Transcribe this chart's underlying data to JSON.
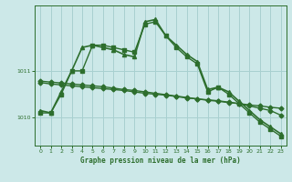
{
  "background_color": "#cce8e8",
  "grid_color": "#a8d0d0",
  "line_color": "#2d6e2d",
  "title": "Graphe pression niveau de la mer (hPa)",
  "xlim": [
    -0.5,
    23.5
  ],
  "ylim": [
    1009.4,
    1012.4
  ],
  "yticks": [
    1010,
    1011
  ],
  "xticks": [
    0,
    1,
    2,
    3,
    4,
    5,
    6,
    7,
    8,
    9,
    10,
    11,
    12,
    13,
    14,
    15,
    16,
    17,
    18,
    19,
    20,
    21,
    22,
    23
  ],
  "series": [
    {
      "x": [
        0,
        1,
        2,
        3,
        4,
        5,
        6,
        7,
        8,
        9,
        10,
        11,
        12,
        13,
        14,
        15,
        16,
        17,
        18,
        19,
        20,
        21,
        22,
        23
      ],
      "y": [
        1010.75,
        1010.72,
        1010.7,
        1010.68,
        1010.66,
        1010.64,
        1010.62,
        1010.6,
        1010.58,
        1010.55,
        1010.52,
        1010.5,
        1010.48,
        1010.45,
        1010.42,
        1010.4,
        1010.37,
        1010.35,
        1010.32,
        1010.3,
        1010.27,
        1010.25,
        1010.22,
        1010.2
      ],
      "marker": "D",
      "markersize": 2.5,
      "linewidth": 1.0
    },
    {
      "x": [
        0,
        1,
        2,
        3,
        4,
        5,
        6,
        7,
        8,
        9,
        10,
        11,
        12,
        13,
        14,
        15,
        16,
        17,
        18,
        19,
        20,
        21,
        22,
        23
      ],
      "y": [
        1010.78,
        1010.76,
        1010.74,
        1010.72,
        1010.7,
        1010.68,
        1010.66,
        1010.63,
        1010.6,
        1010.58,
        1010.55,
        1010.52,
        1010.49,
        1010.46,
        1010.43,
        1010.4,
        1010.38,
        1010.36,
        1010.33,
        1010.3,
        1010.25,
        1010.2,
        1010.15,
        1010.05
      ],
      "marker": "D",
      "markersize": 2.5,
      "linewidth": 1.0
    },
    {
      "x": [
        0,
        1,
        2,
        3,
        4,
        5,
        6,
        7,
        8,
        9,
        10,
        11,
        12,
        13,
        14,
        15,
        16,
        17,
        18,
        19,
        20,
        21,
        22,
        23
      ],
      "y": [
        1010.15,
        1010.1,
        1010.55,
        1011.0,
        1011.5,
        1011.55,
        1011.5,
        1011.45,
        1011.35,
        1011.3,
        1012.05,
        1012.1,
        1011.75,
        1011.55,
        1011.35,
        1011.2,
        1010.6,
        1010.65,
        1010.55,
        1010.35,
        1010.15,
        1009.95,
        1009.8,
        1009.65
      ],
      "marker": "^",
      "markersize": 3,
      "linewidth": 1.2
    },
    {
      "x": [
        0,
        1,
        2,
        3,
        4,
        5,
        6,
        7,
        8,
        9,
        10,
        11,
        12,
        13,
        14,
        15,
        16,
        17,
        18,
        19,
        20,
        21,
        22,
        23
      ],
      "y": [
        1010.1,
        1010.1,
        1010.5,
        1011.0,
        1011.0,
        1011.55,
        1011.55,
        1011.5,
        1011.45,
        1011.4,
        1012.0,
        1012.05,
        1011.75,
        1011.5,
        1011.3,
        1011.15,
        1010.55,
        1010.65,
        1010.5,
        1010.3,
        1010.1,
        1009.9,
        1009.75,
        1009.6
      ],
      "marker": "s",
      "markersize": 2.5,
      "linewidth": 1.0
    }
  ]
}
